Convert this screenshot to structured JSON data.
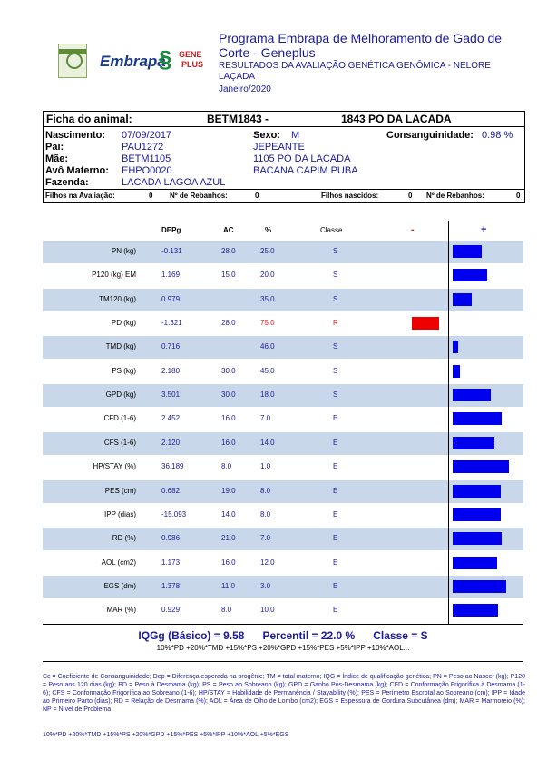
{
  "header": {
    "logo_brand": "Embrapa",
    "logo_gene_top": "GENE",
    "logo_gene_bottom": "PLUS",
    "title": "Programa Embrapa de Melhoramento de Gado de Corte - Geneplus",
    "subtitle": "RESULTADOS DA AVALIAÇÃO GENÉTICA GENÔMICA - NELORE LAÇADA",
    "date": "Janeiro/2020"
  },
  "animal": {
    "ficha_label": "Ficha do animal:",
    "id": "BETM1843 -",
    "name": "1843 PO DA LACADA",
    "nascimento_label": "Nascimento:",
    "nascimento": "07/09/2017",
    "sexo_label": "Sexo:",
    "sexo": "M",
    "consanguinidade_label": "Consanguinidade:",
    "consanguinidade": "0.98 %",
    "pai_label": "Pai:",
    "pai_id": "PAU1272",
    "pai_name": "JEPEANTE",
    "mae_label": "Mãe:",
    "mae_id": "BETM1105",
    "mae_name": "1105 PO DA LACADA",
    "avo_label": "Avô Materno:",
    "avo_id": "EHPO0020",
    "avo_name": "BACANA CAPIM PUBA",
    "fazenda_label": "Fazenda:",
    "fazenda": "LACADA LAGOA AZUL"
  },
  "stats": {
    "filhos_avaliacao_label": "Filhos na Avaliação:",
    "filhos_avaliacao": "0",
    "rebanhos1_label": "Nº de Rebanhos:",
    "rebanhos1": "0",
    "filhos_nascidos_label": "Filhos nascidos:",
    "filhos_nascidos": "0",
    "rebanhos2_label": "Nº de Rebanhos:",
    "rebanhos2": "0"
  },
  "table": {
    "headers": {
      "dep": "DEPg",
      "ac": "AC",
      "pct": "%",
      "classe": "Classe",
      "minus": "-",
      "plus": "+"
    },
    "rows": [
      {
        "trait": "PN (kg)",
        "dep": "-0.131",
        "ac": "28.0",
        "pct": "25.0",
        "cls": "S",
        "bar": 0.4,
        "sign": 1
      },
      {
        "trait": "P120 (kg) EM",
        "dep": "1.169",
        "ac": "15.0",
        "pct": "20.0",
        "cls": "S",
        "bar": 0.48,
        "sign": 1
      },
      {
        "trait": "TM120 (kg)",
        "dep": "0.979",
        "ac": "",
        "pct": "35.0",
        "cls": "S",
        "bar": 0.26,
        "sign": 1
      },
      {
        "trait": "PD (kg)",
        "dep": "-1.321",
        "ac": "28.0",
        "pct": "75.0",
        "cls": "R",
        "bar": 0.38,
        "sign": -1
      },
      {
        "trait": "TMD (kg)",
        "dep": "0.716",
        "ac": "",
        "pct": "46.0",
        "cls": "S",
        "bar": 0.08,
        "sign": 1
      },
      {
        "trait": "PS (kg)",
        "dep": "2.180",
        "ac": "30.0",
        "pct": "45.0",
        "cls": "S",
        "bar": 0.1,
        "sign": 1
      },
      {
        "trait": "GPD (kg)",
        "dep": "3.501",
        "ac": "30.0",
        "pct": "18.0",
        "cls": "S",
        "bar": 0.52,
        "sign": 1
      },
      {
        "trait": "CFD (1-6)",
        "dep": "2.452",
        "ac": "16.0",
        "pct": "7.0",
        "cls": "E",
        "bar": 0.67,
        "sign": 1
      },
      {
        "trait": "CFS (1-6)",
        "dep": "2.120",
        "ac": "16.0",
        "pct": "14.0",
        "cls": "E",
        "bar": 0.58,
        "sign": 1
      },
      {
        "trait": "HP/STAY (%)",
        "dep": "36.189",
        "ac": "8.0",
        "pct": "1.0",
        "cls": "E",
        "bar": 0.78,
        "sign": 1
      },
      {
        "trait": "PES (cm)",
        "dep": "0.682",
        "ac": "19.0",
        "pct": "8.0",
        "cls": "E",
        "bar": 0.66,
        "sign": 1
      },
      {
        "trait": "IPP (dias)",
        "dep": "-15.093",
        "ac": "14.0",
        "pct": "8.0",
        "cls": "E",
        "bar": 0.66,
        "sign": 1
      },
      {
        "trait": "RD (%)",
        "dep": "0.986",
        "ac": "21.0",
        "pct": "7.0",
        "cls": "E",
        "bar": 0.67,
        "sign": 1
      },
      {
        "trait": "AOL (cm2)",
        "dep": "1.173",
        "ac": "16.0",
        "pct": "12.0",
        "cls": "E",
        "bar": 0.61,
        "sign": 1
      },
      {
        "trait": "EGS (dm)",
        "dep": "1.378",
        "ac": "11.0",
        "pct": "3.0",
        "cls": "E",
        "bar": 0.74,
        "sign": 1
      },
      {
        "trait": "MAR (%)",
        "dep": "0.929",
        "ac": "8.0",
        "pct": "10.0",
        "cls": "E",
        "bar": 0.63,
        "sign": 1
      }
    ]
  },
  "summary": {
    "iqg": "IQGg (Básico) = 9.58",
    "percentil": "Percentil = 22.0 %",
    "classe": "Classe = S",
    "formula": "10%*PD +20%*TMD +15%*PS +20%*GPD +15%*PES +5%*IPP +10%*AOL..."
  },
  "legend": "Cc = Coeficiente de Consanguinidade; Dep = Diferença esperada na progênie; TM = total materno; IQG = Índice de qualificação genética; PN = Peso ao Nascer (kg); P120 = Peso aos 120 dias (kg); PD = Peso à Desmama (kg); PS = Peso ao Sobreano (kg); GPD = Ganho Pós-Desmama (kg); CFD = Conformação Frigorífica à Desmama (1-6); CFS = Conformação Frigorífica ao Sobreano (1-6); HP/STAY = Habilidade de Permanência / Stayability (%); PES = Perímetro Escrotal ao Sobreano (cm); IPP = Idade ao Primeiro Parto (dias); RD = Relação de Desmama (%); AOL = Área de Olho de Lombo (cm2); EGS = Espessura de Gordura Subcutânea (dm); MAR = Marmoreio (%); NP = Nível de Problema",
  "footer": "10%*PD +20%*TMD +15%*PS +20%*GPD +15%*PES +5%*IPP +10%*AOL +5%*EGS",
  "colors": {
    "bar_positive": "#0000ee",
    "bar_negative": "#ee0000",
    "row_alt": "#c8d8ea",
    "text_blue": "#1a1a9a"
  }
}
